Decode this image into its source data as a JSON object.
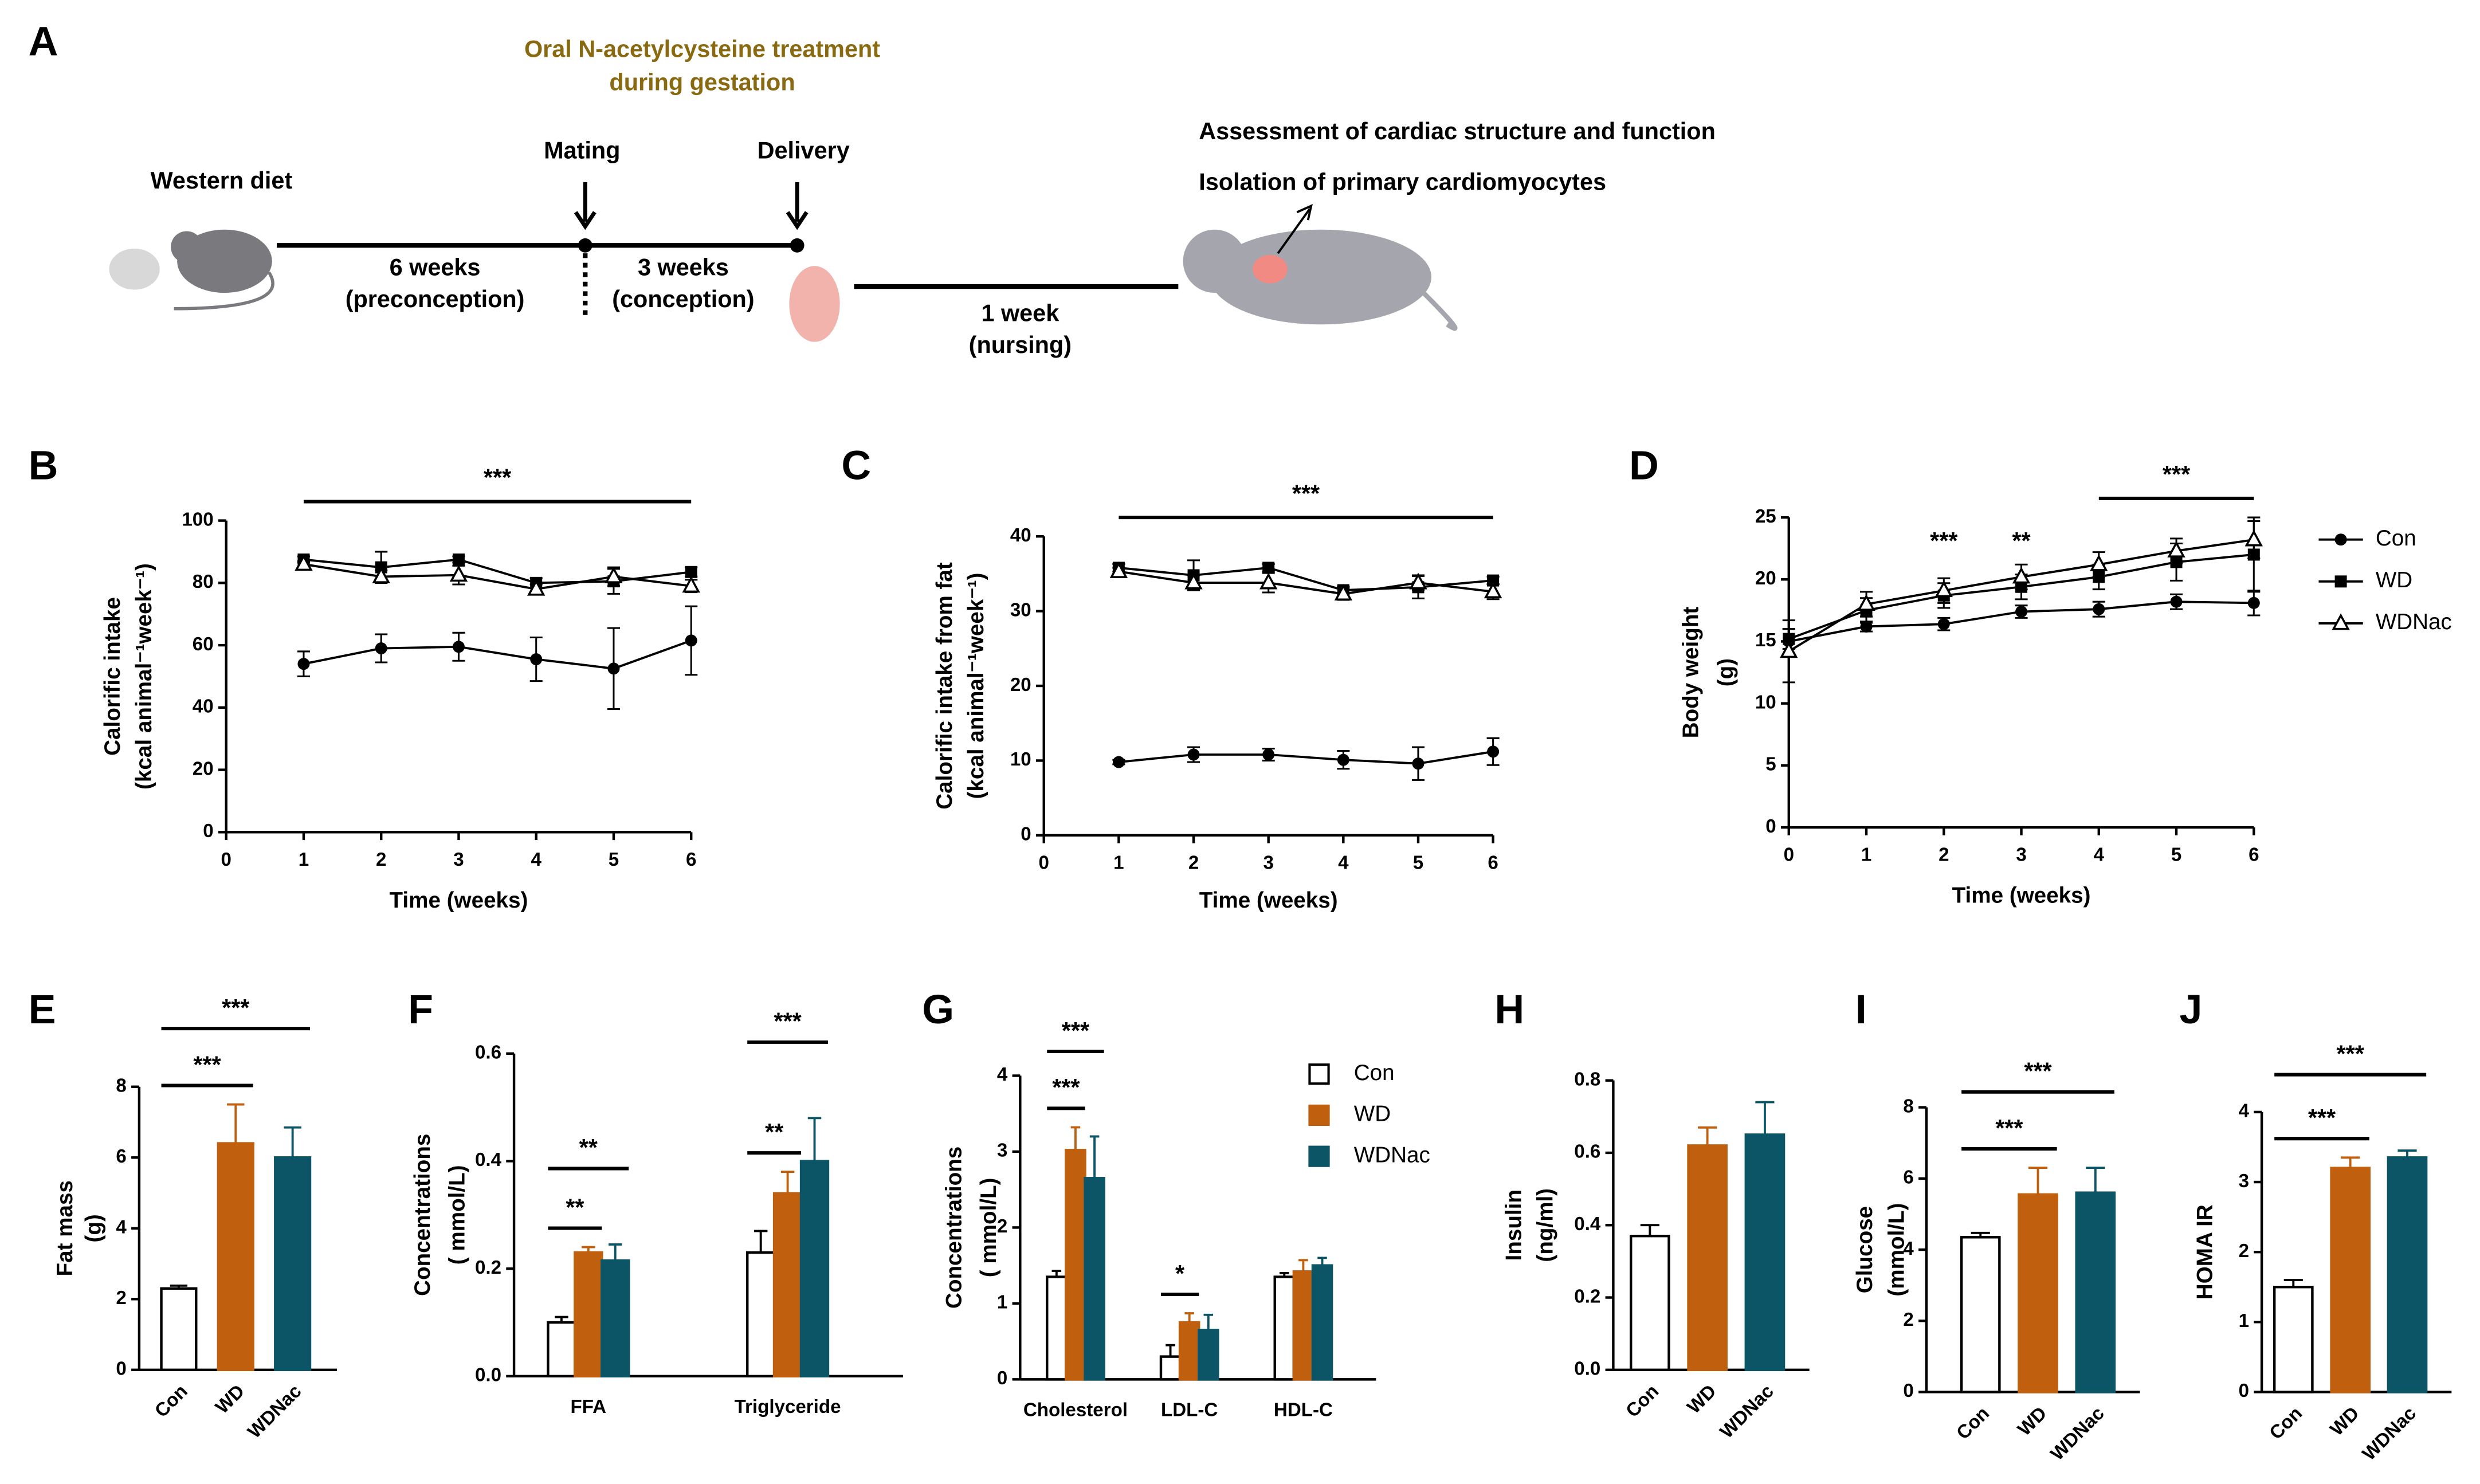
{
  "diagram": {
    "panel": "A",
    "treatment": [
      "Oral N-acetylcysteine treatment",
      "during gestation"
    ],
    "diet": "Western diet",
    "mating": "Mating",
    "delivery": "Delivery",
    "preconception": [
      "6 weeks",
      "(preconception)"
    ],
    "conception": [
      "3 weeks",
      "(conception)"
    ],
    "nursing": [
      "1 week",
      "(nursing)"
    ],
    "outcomes": [
      "Assessment of cardiac structure and function",
      "Isolation of primary cardiomyocytes"
    ]
  },
  "chart_data": [
    {
      "type": "line",
      "panel": "B",
      "xlabel": "Time (weeks)",
      "ylabel": [
        "Calorific intake",
        "(kcal animal⁻¹week⁻¹)"
      ],
      "x": [
        1,
        2,
        3,
        4,
        5,
        6
      ],
      "xlim": [
        0,
        6
      ],
      "xticks": [
        0,
        1,
        2,
        3,
        4,
        5,
        6
      ],
      "ylim": [
        0,
        100
      ],
      "yticks": [
        0,
        20,
        40,
        60,
        80,
        100
      ],
      "series": [
        {
          "name": "Con",
          "marker": "circle",
          "color": "#000000",
          "values": [
            54,
            59,
            59.5,
            55.5,
            52.5,
            61.5
          ],
          "errors": [
            4,
            4.5,
            4.5,
            7,
            13,
            11
          ]
        },
        {
          "name": "WD",
          "marker": "square",
          "color": "#000000",
          "values": [
            87.5,
            85,
            87.5,
            80,
            80.5,
            83.5
          ],
          "errors": [
            1,
            5,
            1,
            1.5,
            4,
            1.5
          ]
        },
        {
          "name": "WDNac",
          "marker": "triangle-open",
          "color": "#000000",
          "values": [
            86,
            82,
            82.5,
            78,
            82,
            79
          ],
          "errors": [
            1,
            2,
            3,
            1.5,
            3,
            2
          ]
        }
      ],
      "annotations": [
        {
          "text": "***",
          "x": [
            1,
            6
          ]
        }
      ]
    },
    {
      "type": "line",
      "panel": "C",
      "xlabel": "Time (weeks)",
      "ylabel": [
        "Calorific intake from fat",
        "(kcal animal⁻¹week⁻¹)"
      ],
      "x": [
        1,
        2,
        3,
        4,
        5,
        6
      ],
      "xlim": [
        0,
        6
      ],
      "xticks": [
        0,
        1,
        2,
        3,
        4,
        5,
        6
      ],
      "ylim": [
        0,
        40
      ],
      "yticks": [
        0,
        10,
        20,
        30,
        40
      ],
      "series": [
        {
          "name": "Con",
          "marker": "circle",
          "color": "#000000",
          "values": [
            9.8,
            10.8,
            10.8,
            10.1,
            9.6,
            11.2
          ],
          "errors": [
            0.3,
            1,
            0.8,
            1.2,
            2.2,
            1.8
          ]
        },
        {
          "name": "WD",
          "marker": "square",
          "color": "#000000",
          "values": [
            35.8,
            34.8,
            35.8,
            32.8,
            33.2,
            34.1
          ],
          "errors": [
            0.5,
            2,
            0.5,
            0.5,
            1.5,
            0.5
          ]
        },
        {
          "name": "WDNac",
          "marker": "triangle-open",
          "color": "#000000",
          "values": [
            35.3,
            33.8,
            33.8,
            32.3,
            33.8,
            32.6
          ],
          "errors": [
            0.5,
            1,
            1.3,
            0.8,
            1,
            1
          ]
        }
      ],
      "annotations": [
        {
          "text": "***",
          "x": [
            1,
            6
          ]
        }
      ]
    },
    {
      "type": "line",
      "panel": "D",
      "xlabel": "Time (weeks)",
      "ylabel": [
        "Body weight",
        "(g)"
      ],
      "legend": "right",
      "x": [
        0,
        1,
        2,
        3,
        4,
        5,
        6
      ],
      "xlim": [
        0,
        6
      ],
      "xticks": [
        0,
        1,
        2,
        3,
        4,
        5,
        6
      ],
      "ylim": [
        0,
        25
      ],
      "yticks": [
        0,
        5,
        10,
        15,
        20,
        25
      ],
      "series": [
        {
          "name": "Con",
          "marker": "circle",
          "color": "#000000",
          "values": [
            15,
            16.2,
            16.4,
            17.4,
            17.6,
            18.2,
            18.1
          ],
          "errors": [
            1,
            0.4,
            0.5,
            0.5,
            0.6,
            0.6,
            1
          ]
        },
        {
          "name": "WD",
          "marker": "square",
          "color": "#000000",
          "values": [
            15.2,
            17.5,
            18.7,
            19.4,
            20.2,
            21.4,
            22
          ],
          "errors": [
            0.8,
            1,
            1,
            1,
            1,
            1.5,
            3
          ]
        },
        {
          "name": "WDNac",
          "marker": "triangle-open",
          "color": "#000000",
          "values": [
            14.2,
            18,
            19.1,
            20.2,
            21.2,
            22.3,
            23.2
          ],
          "errors": [
            2.5,
            1,
            1,
            1,
            1,
            1,
            1.5
          ]
        }
      ],
      "annotations": [
        {
          "text": "***",
          "x": [
            2
          ]
        },
        {
          "text": "**",
          "x": [
            3
          ]
        },
        {
          "text": "***",
          "x": [
            4,
            6
          ]
        }
      ]
    },
    {
      "type": "bar",
      "panel": "E",
      "ylabel": [
        "Fat mass",
        "(g)"
      ],
      "categories": [
        "Con",
        "WD",
        "WDNac"
      ],
      "values": [
        2.3,
        6.4,
        6.0
      ],
      "errors": [
        0.08,
        1.1,
        0.85
      ],
      "colors": [
        "#ffffff",
        "#c0600f",
        "#0b5566"
      ],
      "ylim": [
        0,
        8
      ],
      "yticks": [
        0,
        2,
        4,
        6,
        8
      ],
      "annotations": [
        {
          "text": "***",
          "between": [
            "Con",
            "WD"
          ]
        },
        {
          "text": "***",
          "between": [
            "Con",
            "WDNac"
          ]
        }
      ]
    },
    {
      "type": "bar",
      "panel": "F",
      "ylabel": [
        "Concentrations",
        "( mmol/L)"
      ],
      "categories": [
        "FFA",
        "Triglyceride"
      ],
      "series": [
        {
          "name": "Con",
          "color": "#ffffff",
          "values": [
            0.1,
            0.23
          ],
          "errors": [
            0.01,
            0.04
          ]
        },
        {
          "name": "WD",
          "color": "#c0600f",
          "values": [
            0.23,
            0.34
          ],
          "errors": [
            0.01,
            0.04
          ]
        },
        {
          "name": "WDNac",
          "color": "#0b5566",
          "values": [
            0.215,
            0.4
          ],
          "errors": [
            0.03,
            0.08
          ]
        }
      ],
      "ylim": [
        0,
        0.6
      ],
      "yticks": [
        {
          "value": 0,
          "label": "0.0"
        },
        0.2,
        0.4,
        0.6
      ],
      "annotations": [
        {
          "text": "**",
          "category": "FFA",
          "between": [
            "Con",
            "WD"
          ]
        },
        {
          "text": "**",
          "category": "FFA",
          "between": [
            "Con",
            "WDNac"
          ]
        },
        {
          "text": "**",
          "category": "Triglyceride",
          "between": [
            "Con",
            "WD"
          ]
        },
        {
          "text": "***",
          "category": "Triglyceride",
          "between": [
            "Con",
            "WDNac"
          ]
        }
      ]
    },
    {
      "type": "bar",
      "panel": "G",
      "ylabel": [
        "Concentrations",
        "( mmol/L)"
      ],
      "categories": [
        "Cholesterol",
        "LDL-C",
        "HDL-C"
      ],
      "legend": "right",
      "series": [
        {
          "name": "Con",
          "color": "#ffffff",
          "values": [
            1.35,
            0.3,
            1.35
          ],
          "errors": [
            0.08,
            0.15,
            0.05
          ]
        },
        {
          "name": "WD",
          "color": "#c0600f",
          "values": [
            3.02,
            0.75,
            1.42
          ],
          "errors": [
            0.3,
            0.12,
            0.15
          ]
        },
        {
          "name": "WDNac",
          "color": "#0b5566",
          "values": [
            2.65,
            0.65,
            1.5
          ],
          "errors": [
            0.55,
            0.2,
            0.1
          ]
        }
      ],
      "ylim": [
        0,
        4
      ],
      "yticks": [
        0,
        1,
        2,
        3,
        4
      ],
      "annotations": [
        {
          "text": "***",
          "category": "Cholesterol",
          "between": [
            "Con",
            "WD"
          ]
        },
        {
          "text": "***",
          "category": "Cholesterol",
          "between": [
            "Con",
            "WDNac"
          ]
        },
        {
          "text": "*",
          "category": "LDL-C",
          "between": [
            "Con",
            "WD"
          ]
        }
      ]
    },
    {
      "type": "bar",
      "panel": "H",
      "ylabel": [
        "Insulin",
        "(ng/ml)"
      ],
      "categories": [
        "Con",
        "WD",
        "WDNac"
      ],
      "values": [
        0.37,
        0.62,
        0.65
      ],
      "errors": [
        0.03,
        0.05,
        0.09
      ],
      "colors": [
        "#ffffff",
        "#c0600f",
        "#0b5566"
      ],
      "ylim": [
        0,
        0.8
      ],
      "yticks": [
        {
          "value": 0,
          "label": "0.0"
        },
        0.2,
        0.4,
        0.6,
        0.8
      ],
      "annotations": []
    },
    {
      "type": "bar",
      "panel": "I",
      "ylabel": [
        "Glucose",
        "(mmol/L)"
      ],
      "categories": [
        "Con",
        "WD",
        "WDNac"
      ],
      "values": [
        4.35,
        5.55,
        5.6
      ],
      "errors": [
        0.12,
        0.75,
        0.7
      ],
      "colors": [
        "#ffffff",
        "#c0600f",
        "#0b5566"
      ],
      "ylim": [
        0,
        8
      ],
      "yticks": [
        0,
        2,
        4,
        6,
        8
      ],
      "annotations": [
        {
          "text": "***",
          "between": [
            "Con",
            "WD"
          ]
        },
        {
          "text": "***",
          "between": [
            "Con",
            "WDNac"
          ]
        }
      ]
    },
    {
      "type": "bar",
      "panel": "J",
      "ylabel": [
        "HOMA IR"
      ],
      "categories": [
        "Con",
        "WD",
        "WDNac"
      ],
      "values": [
        1.5,
        3.2,
        3.35
      ],
      "errors": [
        0.1,
        0.15,
        0.1
      ],
      "colors": [
        "#ffffff",
        "#c0600f",
        "#0b5566"
      ],
      "ylim": [
        0,
        4
      ],
      "yticks": [
        0,
        1,
        2,
        3,
        4
      ],
      "annotations": [
        {
          "text": "***",
          "between": [
            "Con",
            "WD"
          ]
        },
        {
          "text": "***",
          "between": [
            "Con",
            "WDNac"
          ]
        }
      ]
    }
  ]
}
